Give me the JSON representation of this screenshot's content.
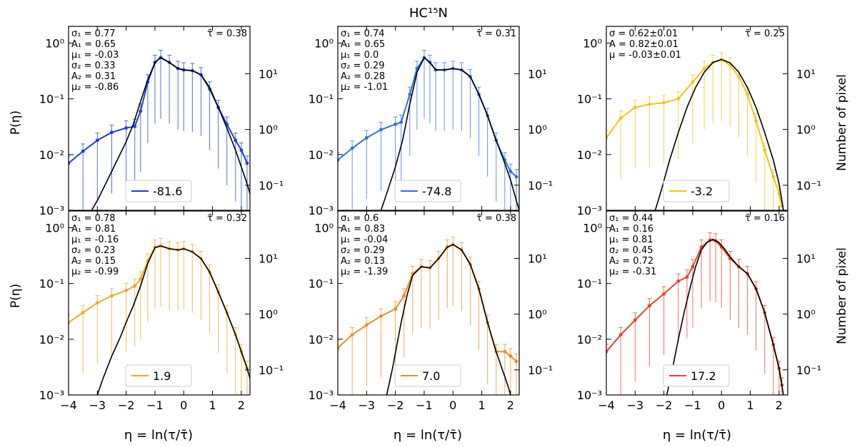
{
  "figure": {
    "title": "HC¹⁵N",
    "xlabel": "η = ln(τ/τ̄)",
    "ylabel_left": "P(η)",
    "ylabel_right": "Number of pixel",
    "x_ticks": [
      "−4",
      "−3",
      "−2",
      "−1",
      "0",
      "1",
      "2"
    ],
    "y_ticks_left": [
      "10⁻³",
      "10⁻²",
      "10⁻¹",
      "10⁰"
    ],
    "y_ticks_right": [
      "10⁻¹",
      "10⁰",
      "10¹"
    ]
  },
  "chart_data": [
    {
      "type": "line",
      "id": "p1",
      "legend": "-81.6",
      "color": "#1f3fd4",
      "xlim": [
        -4,
        2.3
      ],
      "ylim_log10": [
        -3,
        0.3
      ],
      "right_ylim_log10": [
        -1.45,
        1.85
      ],
      "tau_bar": "τ̄ = 0.38",
      "stats": [
        "σ₁ = 0.77",
        "A₁ = 0.65",
        "μ₁ = -0.03",
        "σ₂ = 0.33",
        "A₂ = 0.31",
        "μ₂ = -0.86"
      ],
      "data_x": [
        -4,
        -3.5,
        -3,
        -2.5,
        -2,
        -1.7,
        -1.5,
        -1.25,
        -1,
        -0.8,
        -0.5,
        -0.2,
        0,
        0.3,
        0.6,
        0.9,
        1.2,
        1.5,
        1.8,
        2.0,
        2.2
      ],
      "data_y": [
        0.007,
        0.0115,
        0.018,
        0.025,
        0.03,
        0.032,
        0.06,
        0.2,
        0.45,
        0.55,
        0.45,
        0.35,
        0.33,
        0.32,
        0.27,
        0.15,
        0.07,
        0.035,
        0.018,
        0.012,
        0.007
      ],
      "model_x": [
        -3.2,
        -3,
        -2.5,
        -2,
        -1.75,
        -1.5,
        -1.25,
        -1,
        -0.8,
        -0.5,
        -0.2,
        0,
        0.3,
        0.6,
        0.9,
        1.2,
        1.5,
        1.8,
        2.0,
        2.2,
        2.3
      ],
      "model_y": [
        0.001,
        0.0015,
        0.005,
        0.017,
        0.035,
        0.09,
        0.22,
        0.45,
        0.55,
        0.45,
        0.35,
        0.33,
        0.32,
        0.27,
        0.16,
        0.07,
        0.03,
        0.012,
        0.006,
        0.003,
        0.002
      ]
    },
    {
      "type": "line",
      "id": "p2",
      "legend": "-74.8",
      "color": "#2f6fe0",
      "xlim": [
        -4,
        2.3
      ],
      "ylim_log10": [
        -3,
        0.3
      ],
      "right_ylim_log10": [
        -1.45,
        1.85
      ],
      "tau_bar": "τ̄ = 0.31",
      "stats": [
        "σ₁ = 0.74",
        "A₁ = 0.65",
        "μ₁ = 0.0",
        "σ₂ = 0.29",
        "A₂ = 0.28",
        "μ₂ = -1.01"
      ],
      "data_x": [
        -4,
        -3.5,
        -3,
        -2.5,
        -2,
        -1.8,
        -1.5,
        -1.25,
        -1,
        -0.8,
        -0.6,
        -0.3,
        0,
        0.3,
        0.6,
        0.9,
        1.2,
        1.5,
        1.8,
        2.0,
        2.2
      ],
      "data_y": [
        0.008,
        0.013,
        0.02,
        0.028,
        0.035,
        0.038,
        0.12,
        0.35,
        0.55,
        0.45,
        0.33,
        0.33,
        0.35,
        0.33,
        0.25,
        0.12,
        0.05,
        0.018,
        0.008,
        0.005,
        0.004
      ],
      "model_x": [
        -2.5,
        -2.3,
        -2,
        -1.75,
        -1.5,
        -1.25,
        -1,
        -0.8,
        -0.6,
        -0.3,
        0,
        0.3,
        0.6,
        0.9,
        1.2,
        1.5,
        1.8,
        2.0,
        2.2,
        2.3
      ],
      "model_y": [
        0.001,
        0.002,
        0.006,
        0.018,
        0.08,
        0.3,
        0.55,
        0.45,
        0.33,
        0.33,
        0.35,
        0.33,
        0.25,
        0.12,
        0.05,
        0.018,
        0.007,
        0.0035,
        0.0015,
        0.001
      ]
    },
    {
      "type": "line",
      "id": "p3",
      "legend": "-3.2",
      "color": "#f3c31d",
      "xlim": [
        -4,
        2.3
      ],
      "ylim_log10": [
        -3,
        0.3
      ],
      "right_ylim_log10": [
        -1.45,
        1.85
      ],
      "tau_bar": "τ̄ = 0.25",
      "stats": [
        "σ = 0.62±0.01",
        "A = 0.82±0.01",
        "μ = -0.03±0.01"
      ],
      "data_x": [
        -4,
        -3.5,
        -3,
        -2.5,
        -2,
        -1.5,
        -1,
        -0.6,
        -0.3,
        0,
        0.3,
        0.6,
        0.9,
        1.2,
        1.5,
        1.8,
        2.0,
        2.1
      ],
      "data_y": [
        0.02,
        0.045,
        0.07,
        0.08,
        0.085,
        0.1,
        0.2,
        0.35,
        0.45,
        0.5,
        0.4,
        0.25,
        0.12,
        0.04,
        0.012,
        0.004,
        0.002,
        0.0012
      ],
      "model_x": [
        -2.3,
        -2.1,
        -1.8,
        -1.5,
        -1.2,
        -0.9,
        -0.6,
        -0.3,
        0,
        0.3,
        0.6,
        0.9,
        1.2,
        1.5,
        1.8,
        2.0,
        2.15
      ],
      "model_y": [
        0.001,
        0.0022,
        0.008,
        0.025,
        0.07,
        0.16,
        0.3,
        0.45,
        0.51,
        0.44,
        0.3,
        0.16,
        0.07,
        0.025,
        0.008,
        0.003,
        0.001
      ]
    },
    {
      "type": "line",
      "id": "p4",
      "legend": "1.9",
      "color": "#f5a623",
      "xlim": [
        -4,
        2.3
      ],
      "ylim_log10": [
        -3,
        0.3
      ],
      "right_ylim_log10": [
        -1.45,
        1.85
      ],
      "tau_bar": "τ̄ = 0.32",
      "stats": [
        "σ₁ = 0.78",
        "A₁ = 0.81",
        "μ₁ = -0.16",
        "σ₂ = 0.23",
        "A₂ = 0.15",
        "μ₂ = -0.99"
      ],
      "data_x": [
        -4,
        -3.5,
        -3,
        -2.5,
        -2,
        -1.7,
        -1.5,
        -1.25,
        -1,
        -0.8,
        -0.5,
        -0.2,
        0,
        0.3,
        0.6,
        0.9,
        1.2,
        1.5,
        1.8,
        2.0,
        2.2
      ],
      "data_y": [
        0.02,
        0.03,
        0.045,
        0.06,
        0.075,
        0.09,
        0.12,
        0.25,
        0.45,
        0.48,
        0.42,
        0.4,
        0.42,
        0.37,
        0.28,
        0.16,
        0.07,
        0.03,
        0.012,
        0.006,
        0.003
      ],
      "model_x": [
        -3,
        -2.8,
        -2.5,
        -2.2,
        -2,
        -1.75,
        -1.5,
        -1.25,
        -1,
        -0.8,
        -0.5,
        -0.2,
        0,
        0.3,
        0.6,
        0.9,
        1.2,
        1.5,
        1.8,
        2.0,
        2.2,
        2.3
      ],
      "model_y": [
        0.001,
        0.002,
        0.005,
        0.011,
        0.02,
        0.04,
        0.09,
        0.23,
        0.44,
        0.47,
        0.42,
        0.4,
        0.42,
        0.37,
        0.28,
        0.16,
        0.07,
        0.03,
        0.012,
        0.006,
        0.003,
        0.002
      ]
    },
    {
      "type": "line",
      "id": "p5",
      "legend": "7.0",
      "color": "#f08a24",
      "xlim": [
        -4,
        2.3
      ],
      "ylim_log10": [
        -3,
        0.3
      ],
      "right_ylim_log10": [
        -1.45,
        1.85
      ],
      "tau_bar": "τ̄ = 0.38",
      "stats": [
        "σ₁ = 0.6",
        "A₁ = 0.83",
        "μ₁ = -0.04",
        "σ₂ = 0.29",
        "A₂ = 0.13",
        "μ₂ = -1.39"
      ],
      "data_x": [
        -4,
        -3.5,
        -3,
        -2.5,
        -2,
        -1.7,
        -1.4,
        -1.1,
        -0.8,
        -0.5,
        -0.2,
        0,
        0.3,
        0.6,
        0.9,
        1.2,
        1.5,
        1.8,
        2.0,
        2.2
      ],
      "data_y": [
        0.007,
        0.012,
        0.018,
        0.026,
        0.035,
        0.06,
        0.15,
        0.2,
        0.19,
        0.28,
        0.45,
        0.5,
        0.4,
        0.22,
        0.08,
        0.02,
        0.006,
        0.006,
        0.005,
        0.004
      ],
      "model_x": [
        -2.3,
        -2.1,
        -1.8,
        -1.6,
        -1.4,
        -1.1,
        -0.8,
        -0.5,
        -0.2,
        0,
        0.3,
        0.6,
        0.9,
        1.2,
        1.5,
        1.7,
        1.9,
        2.0,
        2.1
      ],
      "model_y": [
        0.001,
        0.003,
        0.02,
        0.06,
        0.14,
        0.2,
        0.19,
        0.28,
        0.45,
        0.5,
        0.4,
        0.22,
        0.08,
        0.02,
        0.006,
        0.003,
        0.0015,
        0.001,
        0.0007
      ]
    },
    {
      "type": "line",
      "id": "p6",
      "legend": "17.2",
      "color": "#e8442a",
      "xlim": [
        -4,
        2.3
      ],
      "ylim_log10": [
        -3,
        0.3
      ],
      "right_ylim_log10": [
        -1.45,
        1.85
      ],
      "tau_bar": "τ̄ = 0.16",
      "stats": [
        "σ₁ = 0.44",
        "A₁ = 0.16",
        "μ₁ = 0.81",
        "σ₂ = 0.45",
        "A₂ = 0.72",
        "μ₂ = -0.31"
      ],
      "data_x": [
        -4,
        -3.5,
        -3,
        -2.5,
        -2,
        -1.5,
        -1.2,
        -1,
        -0.7,
        -0.4,
        -0.2,
        0,
        0.3,
        0.6,
        0.9,
        1.2,
        1.5,
        1.8,
        2.0,
        2.1
      ],
      "data_y": [
        0.006,
        0.012,
        0.022,
        0.04,
        0.065,
        0.11,
        0.13,
        0.2,
        0.45,
        0.6,
        0.58,
        0.45,
        0.28,
        0.2,
        0.15,
        0.08,
        0.03,
        0.008,
        0.003,
        0.0015
      ],
      "model_x": [
        -1.9,
        -1.7,
        -1.5,
        -1.3,
        -1.1,
        -0.9,
        -0.7,
        -0.5,
        -0.3,
        -0.1,
        0.1,
        0.3,
        0.6,
        0.9,
        1.2,
        1.5,
        1.8,
        2.0,
        2.15
      ],
      "model_y": [
        0.001,
        0.003,
        0.01,
        0.03,
        0.08,
        0.2,
        0.4,
        0.55,
        0.62,
        0.55,
        0.42,
        0.3,
        0.2,
        0.15,
        0.08,
        0.03,
        0.008,
        0.003,
        0.001
      ]
    }
  ]
}
